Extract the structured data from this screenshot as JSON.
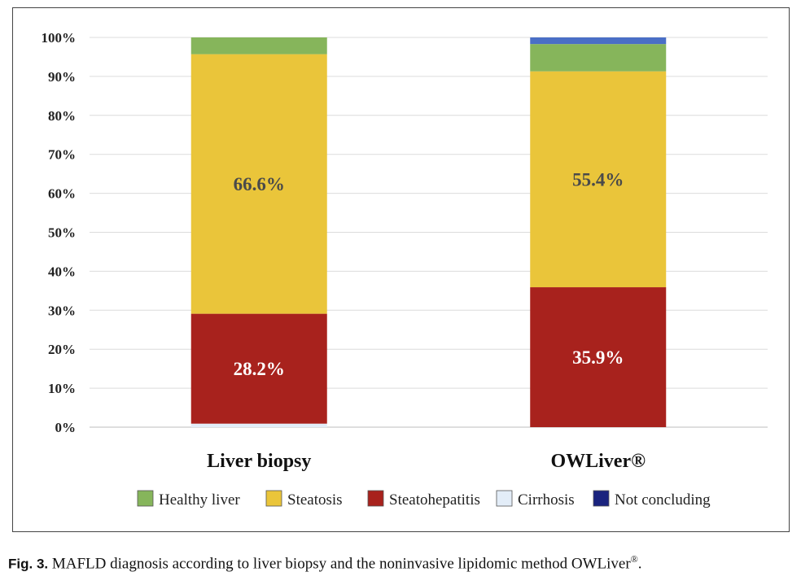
{
  "chart_data": {
    "type": "bar",
    "stacked": true,
    "categories": [
      "Liver biopsy",
      "OWLiver®"
    ],
    "series": [
      {
        "name": "Cirrhosis",
        "color": "#e3edf8",
        "values": [
          0.9,
          0.0
        ]
      },
      {
        "name": "Steatohepatitis",
        "color": "#a8221d",
        "values": [
          28.2,
          35.9
        ],
        "labels": [
          "28.2%",
          "35.9%"
        ],
        "label_color": "#ffffff"
      },
      {
        "name": "Steatosis",
        "color": "#eac53a",
        "values": [
          66.6,
          55.4
        ],
        "labels": [
          "66.6%",
          "55.4%"
        ],
        "label_color": "#4a4a4a"
      },
      {
        "name": "Healthy liver",
        "color": "#86b55b",
        "values": [
          4.3,
          7.0
        ]
      },
      {
        "name": "Not concluding",
        "color": "#4a6fc6",
        "values": [
          0.0,
          1.7
        ]
      }
    ],
    "legend": [
      {
        "name": "Healthy liver",
        "color": "#86b55b"
      },
      {
        "name": "Steatosis",
        "color": "#eac53a"
      },
      {
        "name": "Steatohepatitis",
        "color": "#a8221d"
      },
      {
        "name": "Cirrhosis",
        "color": "#e3edf8"
      },
      {
        "name": "Not concluding",
        "color": "#1a237e"
      }
    ],
    "legend_position": "bottom",
    "ylim": [
      0,
      100
    ],
    "yticks": [
      "0%",
      "10%",
      "20%",
      "30%",
      "40%",
      "50%",
      "60%",
      "70%",
      "80%",
      "90%",
      "100%"
    ],
    "grid": true
  },
  "caption": {
    "fig_label": "Fig. 3.",
    "text": "MAFLD diagnosis according to liver biopsy and the noninvasive lipidomic method OWLiver",
    "superscript": "®",
    "end": "."
  }
}
